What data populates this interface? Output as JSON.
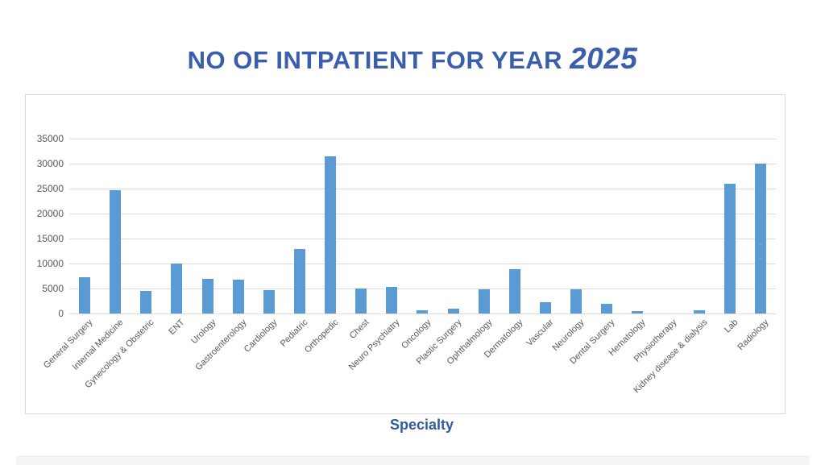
{
  "title": {
    "main": "NO OF INTPATIENT FOR YEAR",
    "year": "2025"
  },
  "xaxis_title": "Specialty",
  "colors": {
    "bar": "#5b9bd5",
    "title_blue": "#3a5eac",
    "axis_text": "#595959",
    "gridline": "#dcdcdc"
  },
  "chart_data": {
    "type": "bar",
    "title": "NO OF INTPATIENT FOR YEAR 2025",
    "xlabel": "Specialty",
    "ylabel": "",
    "ylim": [
      0,
      35000
    ],
    "ytick_step": 5000,
    "grid": true,
    "legend": false,
    "categories": [
      "General Surgery",
      "Internal Medicine",
      "Gynecology & Obstetric",
      "ENT",
      "Urology",
      "Gastroenterology",
      "Cardiology",
      "Pediatric",
      "Orthopedic",
      "Chest",
      "Neuro Psychiatry",
      "Oncology",
      "Plastic Surgery",
      "Ophthalmology",
      "Dermatology",
      "Vascular",
      "Neurology",
      "Dental Surgery",
      "Hematology",
      "Physiotherapy",
      "Kidney disease & dialysis",
      "Lab",
      "Radiology"
    ],
    "values": [
      7300,
      24700,
      4500,
      10000,
      6900,
      6700,
      4700,
      12900,
      31500,
      5000,
      5400,
      600,
      900,
      4800,
      8800,
      2200,
      4900,
      2000,
      500,
      0,
      600,
      26000,
      30000
    ]
  }
}
